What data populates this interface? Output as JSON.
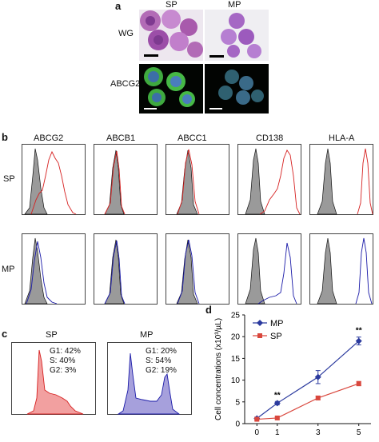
{
  "panels": {
    "a": {
      "letter": "a",
      "col_labels": [
        "SP",
        "MP"
      ],
      "row_labels": [
        "WG",
        "ABCG2"
      ]
    },
    "b": {
      "letter": "b",
      "markers": [
        "ABCG2",
        "ABCB1",
        "ABCC1",
        "CD138",
        "HLA-A"
      ],
      "row_labels": [
        "SP",
        "MP"
      ]
    },
    "c": {
      "letter": "c",
      "SP": {
        "title": "SP",
        "stats": [
          "G1: 42%",
          "S: 40%",
          "G2: 3%"
        ]
      },
      "MP": {
        "title": "MP",
        "stats": [
          "G1: 20%",
          "S: 54%",
          "G2: 19%"
        ]
      }
    },
    "d": {
      "letter": "d"
    }
  },
  "chart_data": {
    "type": "line",
    "x": [
      0,
      1,
      3,
      5
    ],
    "xlabel": "Days",
    "ylabel": "Cell concentrations (x10³/µL)",
    "xlim": [
      -0.6,
      5.6
    ],
    "ylim": [
      0,
      25
    ],
    "yticks": [
      0,
      5,
      10,
      15,
      20,
      25
    ],
    "xticks": [
      "0",
      "1",
      "3",
      "5"
    ],
    "legend_placement": "top-left",
    "series": [
      {
        "name": "MP",
        "values": [
          1.2,
          4.7,
          10.7,
          19.0
        ],
        "errors": [
          0.3,
          0.4,
          1.5,
          0.9
        ],
        "color": "#2b3a9e",
        "marker": "diamond"
      },
      {
        "name": "SP",
        "values": [
          1.0,
          1.3,
          5.9,
          9.2
        ],
        "errors": [
          0.2,
          0.2,
          0.4,
          0.5
        ],
        "color": "#d9473d",
        "marker": "square"
      }
    ],
    "annotations": [
      {
        "x": 1,
        "text": "**"
      },
      {
        "x": 5,
        "text": "**"
      }
    ]
  },
  "colors": {
    "sp": "#d62020",
    "mp": "#1a1aa8",
    "fill": "#9a9a9a"
  }
}
